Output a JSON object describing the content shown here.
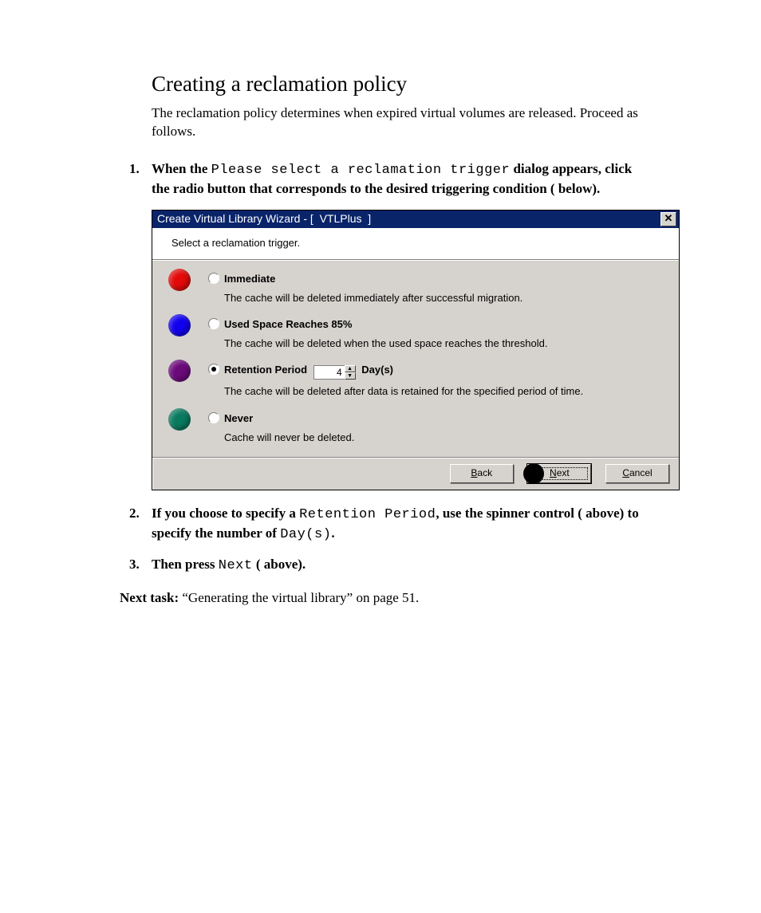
{
  "heading": "Creating a reclamation policy",
  "intro": "The reclamation policy determines when expired virtual volumes are released. Proceed as follows.",
  "steps": {
    "s1": {
      "num": "1.",
      "pre": "When the ",
      "mono1": "Please select a reclamation trigger",
      "mid": " dialog appears, click the radio button that corresponds to the desired triggering condition (   below)."
    },
    "s2": {
      "num": "2.",
      "pre": "If you choose to specify a ",
      "mono1": "Retention Period",
      "mid": ", use the spinner control (   above) to specify the number of ",
      "mono2": "Day(s)",
      "post": "."
    },
    "s3": {
      "num": "3.",
      "pre": "Then press ",
      "mono1": "Next",
      "post": " (   above)."
    }
  },
  "nextTask": {
    "label": "Next task:  ",
    "text": "“Generating the virtual library” on page 51."
  },
  "dialog": {
    "title": "Create Virtual Library Wizard - [  VTLPlus  ]",
    "instruction": "Select a reclamation trigger.",
    "options": {
      "immediate": {
        "label": "Immediate",
        "desc": "The cache will be deleted immediately after successful migration.",
        "dot_color": "#e30909",
        "checked": false
      },
      "usedspace": {
        "label": "Used Space Reaches 85%",
        "desc": "The cache will be deleted when the used space reaches the threshold.",
        "dot_color": "#1100ee",
        "checked": false
      },
      "retention": {
        "label": "Retention Period",
        "days_value": "4",
        "days_unit": "Day(s)",
        "desc": "The cache will be deleted after data is retained for the specified period of time.",
        "dot_color": "#6b0a7a",
        "checked": true
      },
      "never": {
        "label": "Never",
        "desc": "Cache will never be deleted.",
        "dot_color": "#0a7a5f",
        "checked": false
      }
    },
    "buttons": {
      "back": "Back",
      "next": "Next",
      "cancel": "Cancel",
      "next_marker_color": "#000000"
    },
    "colors": {
      "titlebar_bg": "#0a246a",
      "titlebar_fg": "#ffffff",
      "panel_bg": "#d6d3ce",
      "white": "#ffffff"
    }
  }
}
